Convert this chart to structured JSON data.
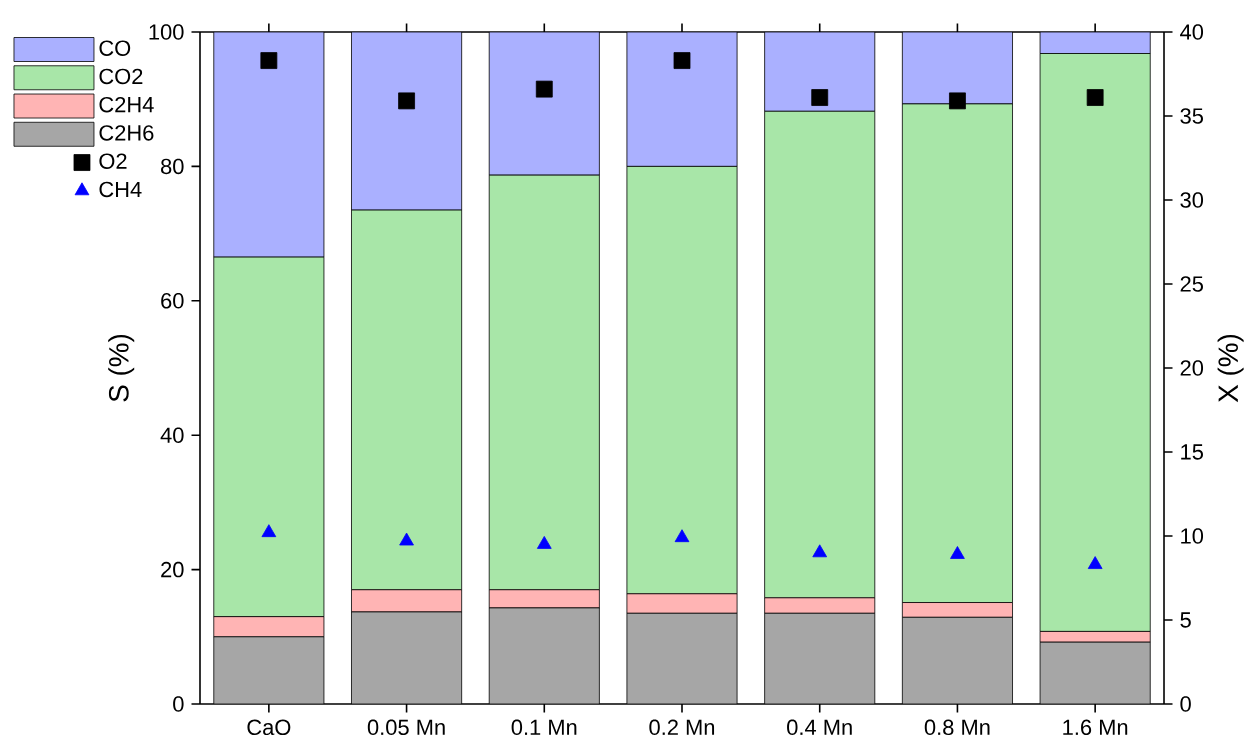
{
  "chart_data": {
    "type": "bar",
    "stacked": true,
    "ylabel": "S (%)",
    "y2label": "X (%)",
    "categories": [
      "CaO",
      "0.05 Mn",
      "0.1 Mn",
      "0.2 Mn",
      "0.4 Mn",
      "0.8 Mn",
      "1.6 Mn"
    ],
    "series": [
      {
        "name": "C2H6",
        "color": "#a6a6a6",
        "values": [
          10,
          13.7,
          14.3,
          13.5,
          13.5,
          12.9,
          9.2
        ]
      },
      {
        "name": "C2H4",
        "color": "#ffb4b4",
        "values": [
          3,
          3.3,
          2.7,
          2.9,
          2.3,
          2.2,
          1.6
        ]
      },
      {
        "name": "CO2",
        "color": "#a8e6a8",
        "values": [
          53.5,
          56.5,
          61.7,
          63.6,
          72.4,
          74.2,
          86
        ]
      },
      {
        "name": "CO",
        "color": "#aab0ff",
        "values": [
          33.5,
          26.5,
          21.3,
          20,
          11.8,
          10.7,
          3.2
        ]
      },
      {
        "name": "O2",
        "type": "scatter",
        "axis": "y2",
        "marker": "square",
        "color": "#000000",
        "values": [
          38.3,
          35.9,
          36.6,
          38.3,
          36.1,
          35.9,
          36.1
        ]
      },
      {
        "name": "CH4",
        "type": "scatter",
        "axis": "y2",
        "marker": "triangle",
        "color": "#0000ff",
        "values": [
          10.2,
          9.7,
          9.5,
          9.9,
          9.0,
          8.9,
          8.3
        ]
      }
    ],
    "ylim": [
      0,
      100
    ],
    "yticks": [
      0,
      20,
      40,
      60,
      80,
      100
    ],
    "y2lim": [
      0,
      40
    ],
    "y2ticks": [
      0,
      5,
      10,
      15,
      20,
      25,
      30,
      35,
      40
    ],
    "legend": "top left",
    "grid": false
  }
}
